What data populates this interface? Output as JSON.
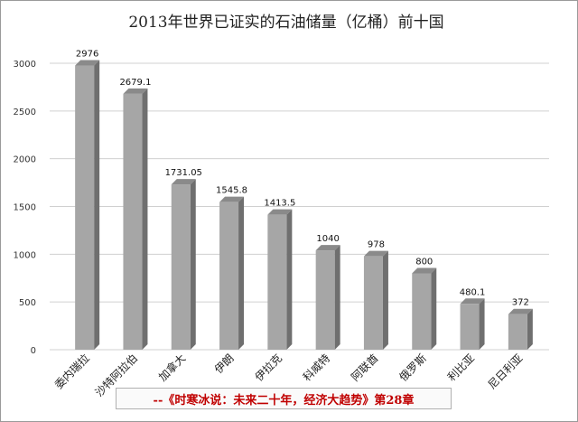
{
  "chart_data": {
    "type": "bar",
    "title": "2013年世界已证实的石油储量（亿桶）前十国",
    "xlabel": "",
    "ylabel": "",
    "ylim": [
      0,
      3000
    ],
    "yticks": [
      0,
      500,
      1000,
      1500,
      2000,
      2500,
      3000
    ],
    "grid": true,
    "legend": "none",
    "categories": [
      "委内瑞拉",
      "沙特阿拉伯",
      "加拿大",
      "伊朗",
      "伊拉克",
      "科威特",
      "阿联酋",
      "俄罗斯",
      "利比亚",
      "尼日利亚"
    ],
    "values": [
      2976,
      2679.1,
      1731.05,
      1545.8,
      1413.5,
      1040,
      978,
      800,
      480.1,
      372
    ],
    "data_labels": [
      "2976",
      "2679.1",
      "1731.05",
      "1545.8",
      "1413.5",
      "1040",
      "978",
      "800",
      "480.1",
      "372"
    ],
    "bar_color": "#a6a6a6"
  },
  "footer": {
    "text": "--《时寒冰说：未来二十年，经济大趋势》第28章",
    "color": "#c00000"
  }
}
